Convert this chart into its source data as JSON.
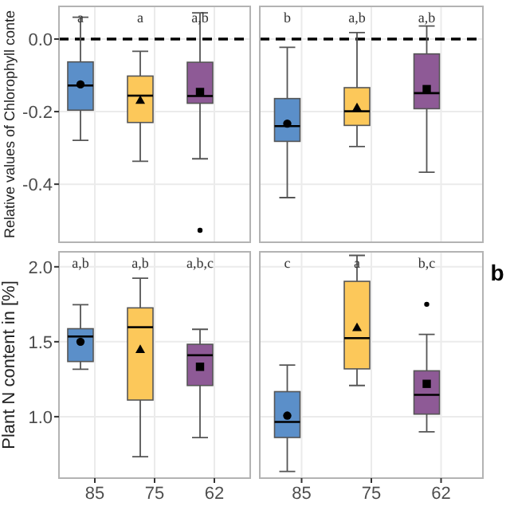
{
  "chart_data": [
    {
      "type": "box",
      "ylabel": "Relative values of Chlorophyll conte",
      "categories": [
        "85",
        "75",
        "62"
      ],
      "colors": [
        "#5b8fc9",
        "#fcc85a",
        "#8e5a96"
      ],
      "ylim": [
        -0.56,
        0.09
      ],
      "yticks": [
        {
          "value": 0,
          "label": "0.0"
        },
        -0.2,
        -0.4
      ],
      "grid": true,
      "tick_labels": "y",
      "ref_lines": [
        {
          "axis": "y",
          "value": 0,
          "line_style": "dashed",
          "color": "#000000"
        }
      ],
      "boxes": [
        {
          "low": -0.279,
          "q1": -0.196,
          "median": -0.128,
          "q3": -0.063,
          "high": 0.06,
          "mean": -0.125
        },
        {
          "low": -0.337,
          "q1": -0.23,
          "median": -0.156,
          "q3": -0.102,
          "high": -0.034,
          "mean": -0.169
        },
        {
          "low": -0.33,
          "q1": -0.177,
          "median": -0.157,
          "q3": -0.064,
          "high": 0.072,
          "mean": -0.146,
          "outliers": [
            -0.527
          ]
        }
      ],
      "annotations": [
        "a",
        "a",
        "a,b"
      ]
    },
    {
      "type": "box",
      "categories": [
        "85",
        "75",
        "62"
      ],
      "colors": [
        "#5b8fc9",
        "#fcc85a",
        "#8e5a96"
      ],
      "ylim": [
        -0.56,
        0.09
      ],
      "yticks": [
        0,
        -0.2,
        -0.4
      ],
      "grid": true,
      "tick_labels": false,
      "ref_lines": [
        {
          "axis": "y",
          "value": 0,
          "line_style": "dashed",
          "color": "#000000"
        }
      ],
      "boxes": [
        {
          "low": -0.437,
          "q1": -0.282,
          "median": -0.24,
          "q3": -0.164,
          "high": -0.023,
          "mean": -0.233
        },
        {
          "low": -0.296,
          "q1": -0.238,
          "median": -0.199,
          "q3": -0.134,
          "high": 0.018,
          "mean": -0.189
        },
        {
          "low": -0.367,
          "q1": -0.192,
          "median": -0.149,
          "q3": -0.041,
          "high": 0.036,
          "mean": -0.138
        }
      ],
      "annotations": [
        "b",
        "a,b",
        "a,b"
      ]
    },
    {
      "type": "box",
      "ylabel": "Plant N content in [%]",
      "categories": [
        "85",
        "75",
        "62"
      ],
      "colors": [
        "#5b8fc9",
        "#fcc85a",
        "#8e5a96"
      ],
      "ylim": [
        0.59,
        2.1
      ],
      "yticks": [
        {
          "value": 1,
          "label": "1.0"
        },
        1.5,
        {
          "value": 2,
          "label": "2.0"
        }
      ],
      "grid": true,
      "boxes": [
        {
          "low": 1.316,
          "q1": 1.368,
          "median": 1.535,
          "q3": 1.587,
          "high": 1.747,
          "mean": 1.5
        },
        {
          "low": 0.733,
          "q1": 1.111,
          "median": 1.597,
          "q3": 1.726,
          "high": 1.924,
          "mean": 1.448
        },
        {
          "low": 0.861,
          "q1": 1.208,
          "median": 1.41,
          "q3": 1.483,
          "high": 1.583,
          "mean": 1.333
        }
      ],
      "annotations": [
        "a,b",
        "a,b",
        "a,b,c"
      ]
    },
    {
      "type": "box",
      "categories": [
        "85",
        "75",
        "62"
      ],
      "colors": [
        "#5b8fc9",
        "#fcc85a",
        "#8e5a96"
      ],
      "ylim": [
        0.59,
        2.1
      ],
      "yticks": [
        1,
        1.5,
        2
      ],
      "grid": true,
      "tick_labels": "x",
      "boxes": [
        {
          "low": 0.635,
          "q1": 0.861,
          "median": 0.965,
          "q3": 1.167,
          "high": 1.344,
          "mean": 1.007
        },
        {
          "low": 1.208,
          "q1": 1.319,
          "median": 1.524,
          "q3": 1.903,
          "high": 2.076,
          "mean": 1.594
        },
        {
          "low": 0.899,
          "q1": 1.017,
          "median": 1.146,
          "q3": 1.306,
          "high": 1.549,
          "mean": 1.219,
          "outliers": [
            1.75
          ]
        }
      ],
      "annotations": [
        "c",
        "a",
        "b,c",
        "b"
      ]
    }
  ]
}
